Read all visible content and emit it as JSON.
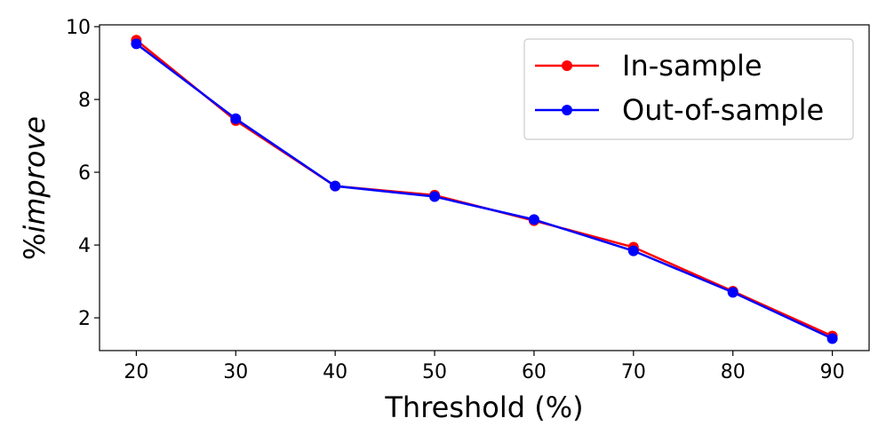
{
  "chart_data": {
    "type": "line",
    "x": [
      20,
      30,
      40,
      50,
      60,
      70,
      80,
      90
    ],
    "xticks": [
      "20",
      "30",
      "40",
      "50",
      "60",
      "70",
      "80",
      "90"
    ],
    "yticks": [
      "2",
      "4",
      "6",
      "8",
      "10"
    ],
    "ytick_values": [
      2,
      4,
      6,
      8,
      10
    ],
    "xlim": [
      16.3,
      93.7
    ],
    "ylim": [
      1.1,
      10.05
    ],
    "xlabel": "Threshold (%)",
    "ylabel_prefix": "%",
    "ylabel_italic": "improve",
    "grid": false,
    "legend_position": "top-right",
    "series": [
      {
        "name": "In-sample",
        "color": "#ff0000",
        "values": [
          9.63,
          7.42,
          5.62,
          5.37,
          4.67,
          3.94,
          2.73,
          1.5
        ]
      },
      {
        "name": "Out-of-sample",
        "color": "#0000ff",
        "values": [
          9.53,
          7.47,
          5.62,
          5.33,
          4.7,
          3.84,
          2.7,
          1.43
        ]
      }
    ]
  }
}
